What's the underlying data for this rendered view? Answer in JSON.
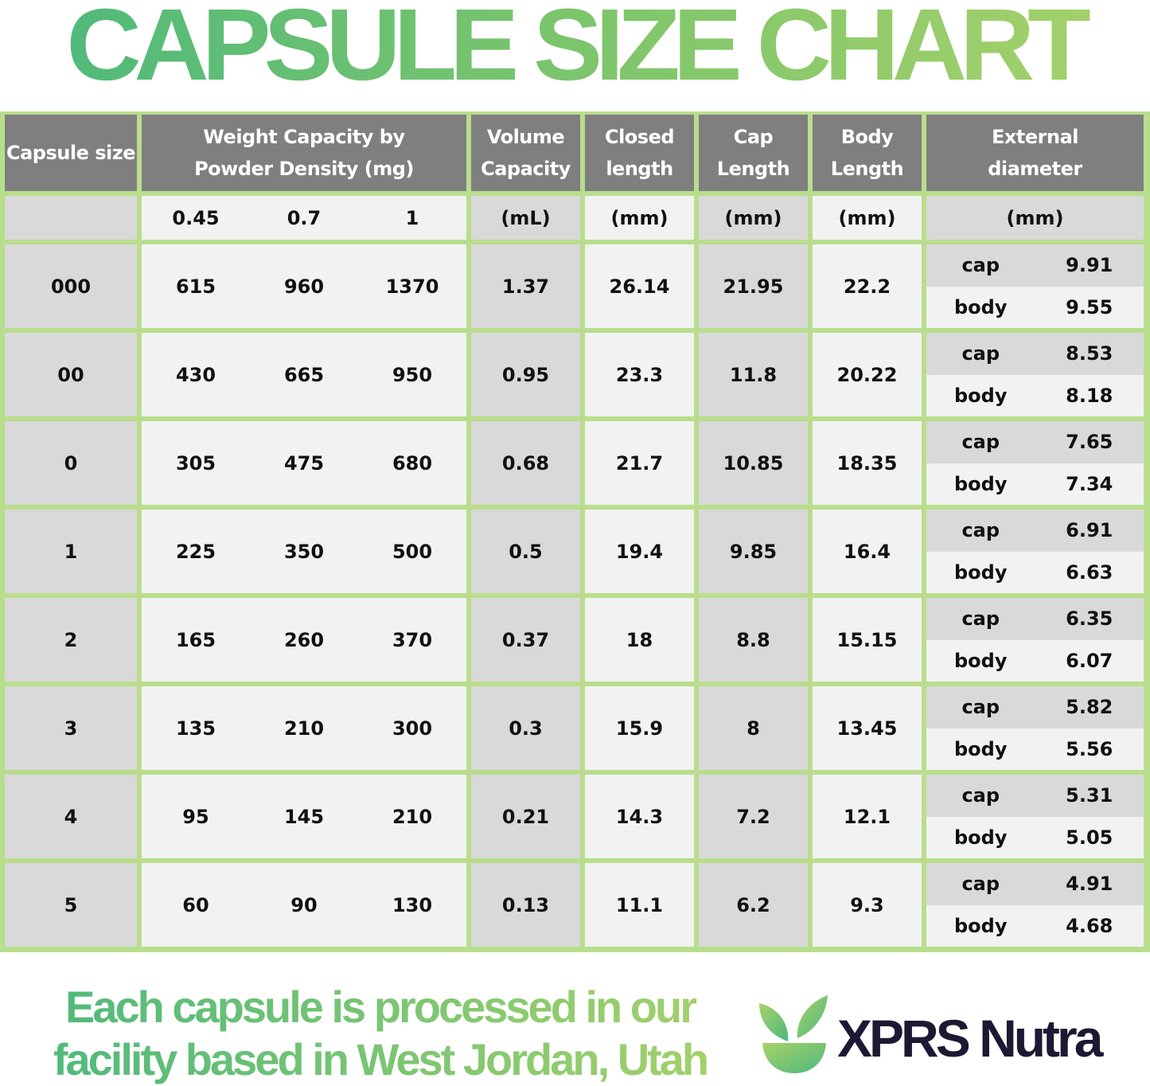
{
  "title": "CAPSULE SIZE CHART",
  "headers": {
    "size": "Capsule size",
    "weight": [
      "Weight Capacity by",
      "Powder Density (mg)"
    ],
    "volume": [
      "Volume",
      "Capacity"
    ],
    "closed": [
      "Closed",
      "length"
    ],
    "cap": [
      "Cap",
      "Length"
    ],
    "body": [
      "Body",
      "Length"
    ],
    "external": [
      "External",
      "diameter"
    ]
  },
  "units": {
    "size": "",
    "densities": [
      "0.45",
      "0.7",
      "1"
    ],
    "volume": "(mL)",
    "closed": "(mm)",
    "cap": "(mm)",
    "body": "(mm)",
    "external": "(mm)"
  },
  "sub_labels": {
    "cap": "cap",
    "body": "body"
  },
  "rows": [
    {
      "size": "000",
      "w": [
        "615",
        "960",
        "1370"
      ],
      "volume": "1.37",
      "closed": "26.14",
      "cap": "21.95",
      "body": "22.2",
      "ext_cap": "9.91",
      "ext_body": "9.55"
    },
    {
      "size": "00",
      "w": [
        "430",
        "665",
        "950"
      ],
      "volume": "0.95",
      "closed": "23.3",
      "cap": "11.8",
      "body": "20.22",
      "ext_cap": "8.53",
      "ext_body": "8.18"
    },
    {
      "size": "0",
      "w": [
        "305",
        "475",
        "680"
      ],
      "volume": "0.68",
      "closed": "21.7",
      "cap": "10.85",
      "body": "18.35",
      "ext_cap": "7.65",
      "ext_body": "7.34"
    },
    {
      "size": "1",
      "w": [
        "225",
        "350",
        "500"
      ],
      "volume": "0.5",
      "closed": "19.4",
      "cap": "9.85",
      "body": "16.4",
      "ext_cap": "6.91",
      "ext_body": "6.63"
    },
    {
      "size": "2",
      "w": [
        "165",
        "260",
        "370"
      ],
      "volume": "0.37",
      "closed": "18",
      "cap": "8.8",
      "body": "15.15",
      "ext_cap": "6.35",
      "ext_body": "6.07"
    },
    {
      "size": "3",
      "w": [
        "135",
        "210",
        "300"
      ],
      "volume": "0.3",
      "closed": "15.9",
      "cap": "8",
      "body": "13.45",
      "ext_cap": "5.82",
      "ext_body": "5.56"
    },
    {
      "size": "4",
      "w": [
        "95",
        "145",
        "210"
      ],
      "volume": "0.21",
      "closed": "14.3",
      "cap": "7.2",
      "body": "12.1",
      "ext_cap": "5.31",
      "ext_body": "5.05"
    },
    {
      "size": "5",
      "w": [
        "60",
        "90",
        "130"
      ],
      "volume": "0.13",
      "closed": "11.1",
      "cap": "6.2",
      "body": "9.3",
      "ext_cap": "4.91",
      "ext_body": "4.68"
    }
  ],
  "footer": {
    "tagline": [
      "Each capsule is processed in our",
      "facility based in West Jordan, Utah"
    ],
    "brand": "XPRS Nutra"
  },
  "colors": {
    "border": "#b8de8c",
    "header": "#7f7f7f",
    "title_start": "#4bb87c",
    "title_end": "#a8d26a",
    "brand": "#1c1a33"
  },
  "icons": {
    "logo": "leaf-bowl-icon"
  }
}
